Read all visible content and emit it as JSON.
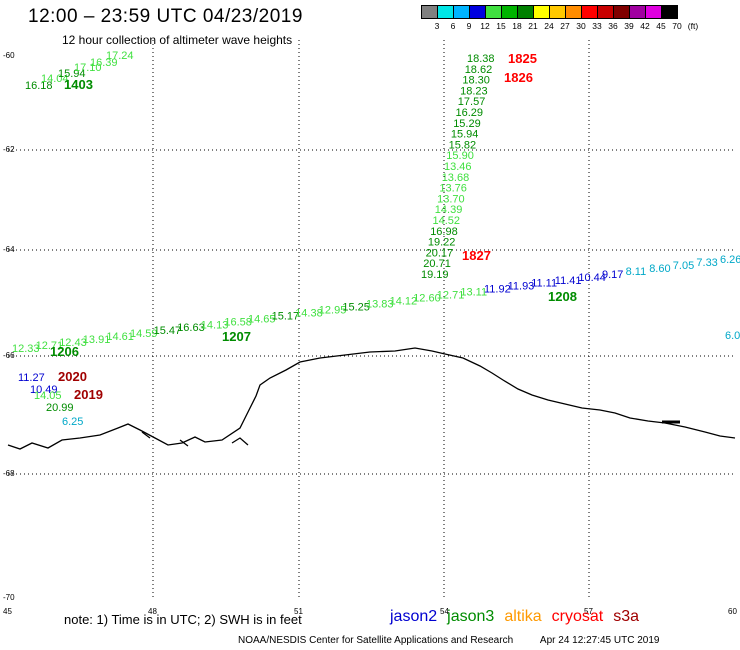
{
  "header": {
    "title": "12:00 – 23:59 UTC 04/23/2019",
    "subtitle": "12 hour collection of altimeter wave heights"
  },
  "legend": {
    "unit": "(ft)",
    "bins": [
      {
        "label": "3",
        "color": "#808080"
      },
      {
        "label": "6",
        "color": "#00e6e6"
      },
      {
        "label": "9",
        "color": "#00b4ff"
      },
      {
        "label": "12",
        "color": "#0000e0"
      },
      {
        "label": "15",
        "color": "#40e040"
      },
      {
        "label": "18",
        "color": "#00b400"
      },
      {
        "label": "21",
        "color": "#008000"
      },
      {
        "label": "24",
        "color": "#ffff00"
      },
      {
        "label": "27",
        "color": "#ffc800"
      },
      {
        "label": "30",
        "color": "#ff8c00"
      },
      {
        "label": "33",
        "color": "#ff0000"
      },
      {
        "label": "36",
        "color": "#c80000"
      },
      {
        "label": "39",
        "color": "#800000"
      },
      {
        "label": "42",
        "color": "#a000a0"
      },
      {
        "label": "45",
        "color": "#e000e0"
      },
      {
        "label": "70",
        "color": "#000000"
      }
    ]
  },
  "map": {
    "lat_labels": [
      "-60",
      "-62",
      "-64",
      "-66",
      "-68",
      "-70"
    ],
    "lon_labels": [
      "45",
      "48",
      "51",
      "54",
      "57",
      "60"
    ]
  },
  "colors": {
    "jason2": "#0000d0",
    "jason3": "#008c00",
    "jason3_light": "#40e040",
    "altika": "#ff9900",
    "cryosat": "#ff0000",
    "s3a": "#a00000",
    "cyan": "#00a8c8",
    "dark_red": "#a00000"
  },
  "tracks": [
    {
      "id": "tr1403",
      "items": [
        {
          "v": "16.18",
          "c": "jason3"
        },
        {
          "v": "14.04",
          "c": "jason3_light"
        },
        {
          "v": "15.94",
          "c": "jason3"
        },
        {
          "v": "17.10",
          "c": "jason3_light"
        },
        {
          "v": "16.39",
          "c": "jason3_light"
        },
        {
          "v": "17.24",
          "c": "jason3_light"
        }
      ],
      "time": "1403",
      "time_c": "jason3"
    },
    {
      "id": "tr182x",
      "items": [
        {
          "v": "18.38",
          "c": "jason3"
        },
        {
          "v": "18.62",
          "c": "jason3"
        },
        {
          "v": "18.30",
          "c": "jason3"
        },
        {
          "v": "18.23",
          "c": "jason3"
        },
        {
          "v": "17.57",
          "c": "jason3"
        },
        {
          "v": "16.29",
          "c": "jason3"
        },
        {
          "v": "15.29",
          "c": "jason3"
        },
        {
          "v": "15.94",
          "c": "jason3"
        },
        {
          "v": "15.82",
          "c": "jason3"
        },
        {
          "v": "15.90",
          "c": "jason3_light"
        },
        {
          "v": "13.46",
          "c": "jason3_light"
        },
        {
          "v": "13.68",
          "c": "jason3_light"
        },
        {
          "v": "13.76",
          "c": "jason3_light"
        },
        {
          "v": "13.70",
          "c": "jason3_light"
        },
        {
          "v": "14.39",
          "c": "jason3_light"
        },
        {
          "v": "14.52",
          "c": "jason3_light"
        },
        {
          "v": "16.98",
          "c": "jason3"
        },
        {
          "v": "19.22",
          "c": "jason3"
        },
        {
          "v": "20.17",
          "c": "jason3"
        },
        {
          "v": "20.71",
          "c": "jason3"
        },
        {
          "v": "19.19",
          "c": "jason3"
        }
      ],
      "times": [
        {
          "v": "1825",
          "c": "cryosat"
        },
        {
          "v": "1826",
          "c": "cryosat"
        },
        {
          "v": "1827",
          "c": "cryosat"
        }
      ]
    },
    {
      "id": "tr120x",
      "items": [
        {
          "v": "12.33",
          "c": "jason3_light"
        },
        {
          "v": "12.71",
          "c": "jason3_light"
        },
        {
          "v": "12.43",
          "c": "jason3_light"
        },
        {
          "v": "13.91",
          "c": "jason3_light"
        },
        {
          "v": "14.61",
          "c": "jason3_light"
        },
        {
          "v": "14.59",
          "c": "jason3_light"
        },
        {
          "v": "15.47",
          "c": "jason3"
        },
        {
          "v": "16.63",
          "c": "jason3"
        },
        {
          "v": "14.13",
          "c": "jason3_light"
        },
        {
          "v": "16.58",
          "c": "jason3_light"
        },
        {
          "v": "14.65",
          "c": "jason3_light"
        },
        {
          "v": "15.17",
          "c": "jason3"
        },
        {
          "v": "14.38",
          "c": "jason3_light"
        },
        {
          "v": "12.95",
          "c": "jason3_light"
        },
        {
          "v": "15.25",
          "c": "jason3"
        },
        {
          "v": "13.83",
          "c": "jason3_light"
        },
        {
          "v": "14.12",
          "c": "jason3_light"
        },
        {
          "v": "12.60",
          "c": "jason3_light"
        },
        {
          "v": "12.71",
          "c": "jason3_light"
        },
        {
          "v": "13.11",
          "c": "jason3_light"
        },
        {
          "v": "11.92",
          "c": "jason2"
        },
        {
          "v": "11.93",
          "c": "jason2"
        },
        {
          "v": "11.11",
          "c": "jason2"
        },
        {
          "v": "11.41",
          "c": "jason2"
        },
        {
          "v": "10.44",
          "c": "jason2"
        },
        {
          "v": "9.17",
          "c": "jason2"
        },
        {
          "v": "8.11",
          "c": "cyan"
        },
        {
          "v": "8.60",
          "c": "cyan"
        },
        {
          "v": "7.05",
          "c": "cyan"
        },
        {
          "v": "7.33",
          "c": "cyan"
        },
        {
          "v": "6.26",
          "c": "cyan"
        },
        {
          "v": "6.0",
          "c": "cyan"
        }
      ],
      "times": [
        {
          "v": "1206",
          "c": "jason3"
        },
        {
          "v": "1207",
          "c": "jason3"
        },
        {
          "v": "1208",
          "c": "jason3"
        }
      ]
    },
    {
      "id": "tr2020",
      "items": [
        {
          "v": "11.27",
          "c": "jason2"
        },
        {
          "v": "10.49",
          "c": "jason2"
        },
        {
          "v": "14.05",
          "c": "jason3_light"
        },
        {
          "v": "20.99",
          "c": "jason3"
        },
        {
          "v": "6.25",
          "c": "cyan"
        }
      ],
      "times": [
        {
          "v": "2020",
          "c": "dark_red"
        },
        {
          "v": "2019",
          "c": "dark_red"
        }
      ]
    }
  ],
  "footer": {
    "note": "note: 1) Time is in UTC; 2) SWH is in feet",
    "satellites": [
      {
        "name": "jason2",
        "color": "#0000d0"
      },
      {
        "name": "jason3",
        "color": "#008c00"
      },
      {
        "name": "altika",
        "color": "#ff9900"
      },
      {
        "name": "cryosat",
        "color": "#ff0000"
      },
      {
        "name": "s3a",
        "color": "#a00000"
      }
    ],
    "credit": "NOAA/NESDIS Center for Satellite Applications and Research",
    "timestamp": "Apr 24 12:27:45 UTC 2019"
  }
}
